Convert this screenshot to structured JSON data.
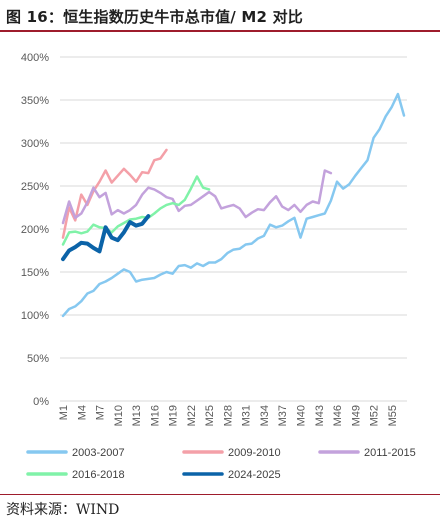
{
  "header": {
    "title": "图 16：恒生指数历史牛市总市值/ M2 对比"
  },
  "footer": {
    "source": "资料来源：WIND"
  },
  "colors": {
    "rule": "#9e1c2c"
  },
  "chart_data": {
    "type": "line",
    "title": "",
    "xlabel": "",
    "ylabel": "",
    "ylim": [
      0,
      400
    ],
    "yticks": [
      "0%",
      "50%",
      "100%",
      "150%",
      "200%",
      "250%",
      "300%",
      "350%",
      "400%"
    ],
    "x_count": 57,
    "xticks": [
      "M1",
      "M4",
      "M7",
      "M10",
      "M13",
      "M16",
      "M19",
      "M22",
      "M25",
      "M28",
      "M31",
      "M34",
      "M37",
      "M40",
      "M43",
      "M46",
      "M49",
      "M52",
      "M55"
    ],
    "grid": "horizontal",
    "legend_position": "bottom",
    "series": [
      {
        "name": "2003-2007",
        "color": "#86c8f0",
        "width": 2.5,
        "values": [
          99,
          107,
          110,
          116,
          125,
          128,
          136,
          139,
          143,
          148,
          153,
          150,
          139,
          141,
          142,
          143,
          147,
          150,
          148,
          157,
          158,
          155,
          160,
          157,
          161,
          161,
          165,
          172,
          176,
          177,
          182,
          183,
          189,
          192,
          205,
          202,
          204,
          209,
          213,
          190,
          212,
          214,
          216,
          218,
          233,
          255,
          247,
          252,
          262,
          271,
          280,
          306,
          316,
          331,
          342,
          357,
          332
        ]
      },
      {
        "name": "2009-2010",
        "color": "#f4a0a8",
        "width": 2.5,
        "values": [
          190,
          225,
          210,
          240,
          228,
          244,
          255,
          268,
          254,
          262,
          270,
          263,
          255,
          266,
          265,
          280,
          282,
          292
        ]
      },
      {
        "name": "2011-2015",
        "color": "#c3a2dc",
        "width": 2.5,
        "values": [
          207,
          232,
          213,
          218,
          231,
          248,
          237,
          242,
          217,
          222,
          218,
          222,
          228,
          240,
          248,
          246,
          242,
          237,
          235,
          221,
          227,
          228,
          233,
          238,
          243,
          238,
          224,
          226,
          228,
          224,
          214,
          219,
          223,
          222,
          231,
          238,
          226,
          222,
          228,
          220,
          228,
          232,
          230,
          268,
          265
        ]
      },
      {
        "name": "2016-2018",
        "color": "#80f2a8",
        "width": 2.5,
        "values": [
          182,
          196,
          197,
          195,
          197,
          205,
          202,
          201,
          196,
          203,
          207,
          211,
          212,
          214,
          213,
          218,
          224,
          228,
          230,
          228,
          234,
          247,
          261,
          248,
          246
        ]
      },
      {
        "name": "2024-2025",
        "color": "#0b63a8",
        "width": 4,
        "values": [
          165,
          175,
          179,
          184,
          183,
          178,
          174,
          202,
          190,
          187,
          196,
          208,
          204,
          206,
          215
        ]
      }
    ]
  }
}
